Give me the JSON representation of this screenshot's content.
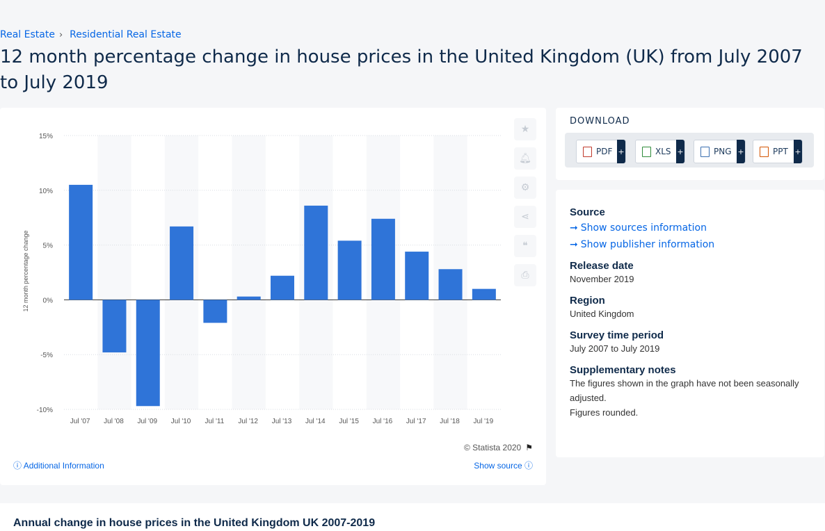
{
  "breadcrumb": [
    "Real Estate",
    "Residential Real Estate"
  ],
  "title": "12 month percentage change in house prices in the United Kingdom (UK) from July 2007 to July 2019",
  "chart_data": {
    "type": "bar",
    "categories": [
      "Jul '07",
      "Jul '08",
      "Jul '09",
      "Jul '10",
      "Jul '11",
      "Jul '12",
      "Jul '13",
      "Jul '14",
      "Jul '15",
      "Jul '16",
      "Jul '17",
      "Jul '18",
      "Jul '19"
    ],
    "values": [
      10.5,
      -4.8,
      -9.7,
      6.7,
      -2.1,
      0.3,
      2.2,
      8.6,
      5.4,
      7.4,
      4.4,
      2.8,
      1.0
    ],
    "ylabel": "12 month percentage change",
    "ylim": [
      -10,
      15
    ],
    "yticks": [
      15,
      10,
      5,
      0,
      -5,
      -10
    ],
    "ytick_labels": [
      "15%",
      "10%",
      "5%",
      "0%",
      "-5%",
      "-10%"
    ],
    "bar_color": "#2f74d8",
    "grid": true
  },
  "chart_footer": {
    "copyright": "© Statista 2020",
    "additional_info": "Additional Information",
    "show_source": "Show source"
  },
  "tools": [
    "star-icon",
    "bell-icon",
    "gear-icon",
    "share-icon",
    "quote-icon",
    "print-icon"
  ],
  "download": {
    "title": "DOWNLOAD",
    "buttons": [
      "PDF",
      "XLS",
      "PNG",
      "PPT"
    ],
    "plus": "+"
  },
  "info": {
    "source_h": "Source",
    "show_sources": "Show sources information",
    "show_publisher": "Show publisher information",
    "release_h": "Release date",
    "release_v": "November 2019",
    "region_h": "Region",
    "region_v": "United Kingdom",
    "survey_h": "Survey time period",
    "survey_v": "July 2007 to July 2019",
    "notes_h": "Supplementary notes",
    "notes_v1": "The figures shown in the graph have not been seasonally adjusted.",
    "notes_v2": "Figures rounded."
  },
  "related_title": "Annual change in house prices in the United Kingdom UK 2007-2019"
}
